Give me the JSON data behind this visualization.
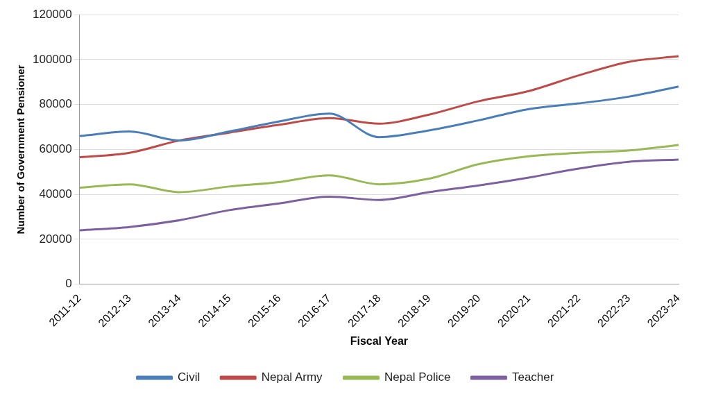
{
  "chart_data": {
    "type": "line",
    "xlabel": "Fiscal Year",
    "ylabel": "Number of Government Pensioner",
    "categories": [
      "2011-12",
      "2012-13",
      "2013-14",
      "2014-15",
      "2015-16",
      "2016-17",
      "2017-18",
      "2018-19",
      "2019-20",
      "2020-21",
      "2021-22",
      "2022-23",
      "2023-24"
    ],
    "series": [
      {
        "name": "Civil",
        "color": "#4a7ebb",
        "values": [
          66000,
          68000,
          64000,
          68000,
          72500,
          76000,
          65500,
          68500,
          73000,
          78000,
          80500,
          83500,
          88000
        ]
      },
      {
        "name": "Nepal Army",
        "color": "#be4b48",
        "values": [
          56500,
          58500,
          64000,
          67500,
          71000,
          74000,
          71500,
          75500,
          81500,
          86000,
          93000,
          99000,
          101500
        ]
      },
      {
        "name": "Nepal Police",
        "color": "#98b954",
        "values": [
          43000,
          44500,
          41000,
          43500,
          45500,
          48500,
          44500,
          47000,
          53500,
          57000,
          58500,
          59500,
          62000
        ]
      },
      {
        "name": "Teacher",
        "color": "#7d60a0",
        "values": [
          24000,
          25500,
          28500,
          33000,
          36000,
          39000,
          37500,
          41000,
          44000,
          47500,
          51500,
          54500,
          55500
        ]
      }
    ],
    "ylim": [
      0,
      120000
    ],
    "yticks": [
      0,
      20000,
      40000,
      60000,
      80000,
      100000,
      120000
    ],
    "grid": "y",
    "legend": "bottom",
    "marker": "none",
    "line_style": "solid"
  }
}
